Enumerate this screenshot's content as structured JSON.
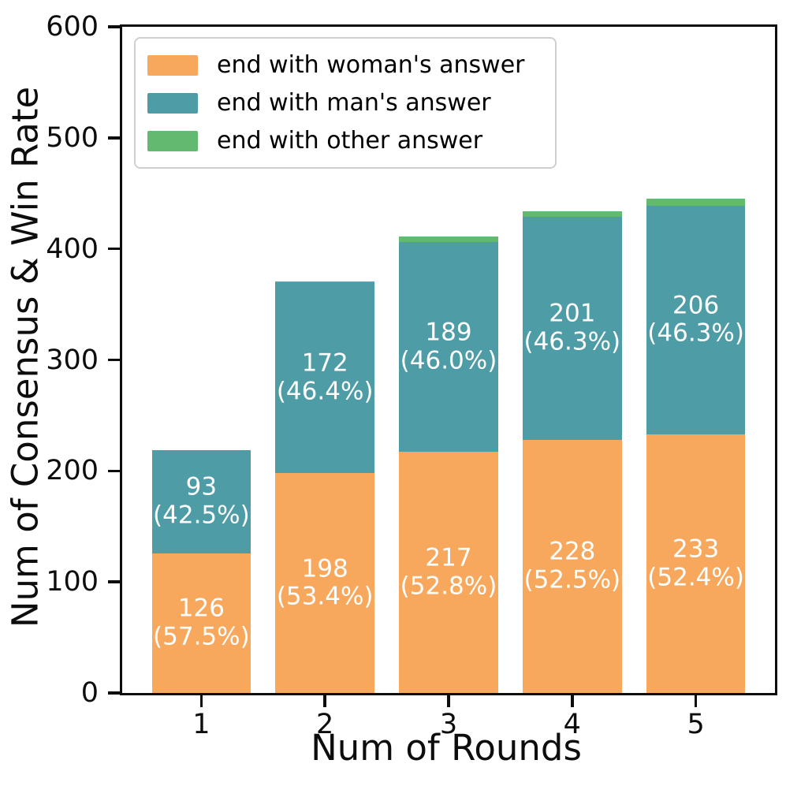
{
  "figure": {
    "background": "#ffffff",
    "spine_color": "#0d0d0d",
    "bar_label_color": "#ffffff"
  },
  "chart_data": {
    "type": "bar",
    "stacked": true,
    "title": "",
    "xlabel": "Num of Rounds",
    "ylabel": "Num of Consensus & Win Rate",
    "categories": [
      "1",
      "2",
      "3",
      "4",
      "5"
    ],
    "series": [
      {
        "name": "end with woman's answer",
        "color": "#F8A85C",
        "values": [
          126,
          198,
          217,
          228,
          233
        ],
        "labels": [
          [
            "126",
            "(57.5%)"
          ],
          [
            "198",
            "(53.4%)"
          ],
          [
            "217",
            "(52.8%)"
          ],
          [
            "228",
            "(52.5%)"
          ],
          [
            "233",
            "(52.4%)"
          ]
        ]
      },
      {
        "name": "end with man's answer",
        "color": "#4E9CA6",
        "values": [
          93,
          172,
          189,
          201,
          206
        ],
        "labels": [
          [
            "93",
            "(42.5%)"
          ],
          [
            "172",
            "(46.4%)"
          ],
          [
            "189",
            "(46.0%)"
          ],
          [
            "201",
            "(46.3%)"
          ],
          [
            "206",
            "(46.3%)"
          ]
        ]
      },
      {
        "name": "end with other answer",
        "color": "#63B96F",
        "values": [
          0,
          1,
          5,
          5,
          6
        ],
        "labels": [
          null,
          null,
          null,
          null,
          null
        ]
      }
    ],
    "ylim": [
      0,
      600
    ],
    "yticks": [
      "0",
      "100",
      "200",
      "300",
      "400",
      "500",
      "600"
    ],
    "xlim": [
      0.36,
      5.64
    ],
    "bar_width": 0.8,
    "grid": false,
    "legend_position": "upper-left"
  }
}
